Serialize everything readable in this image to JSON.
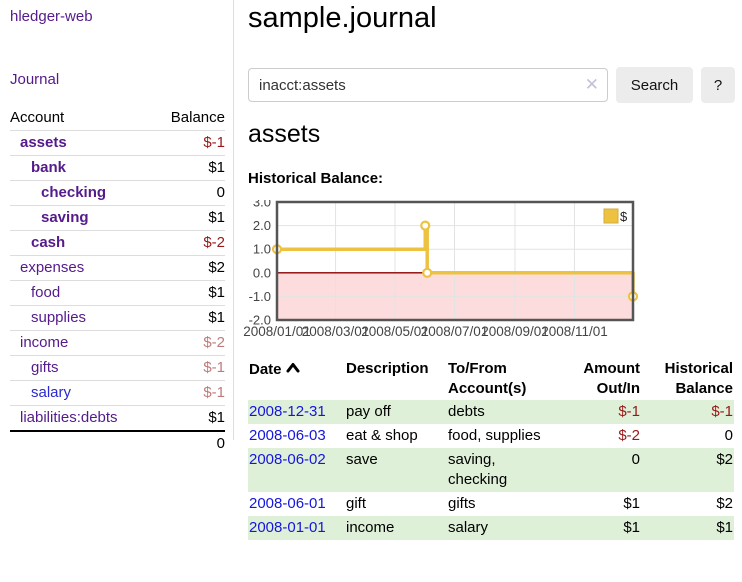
{
  "app": {
    "title": "hledger-web"
  },
  "sidebar": {
    "journal_label": "Journal",
    "accounts": {
      "headers": {
        "account": "Account",
        "balance": "Balance"
      },
      "rows": [
        {
          "name": "assets",
          "indent": 1,
          "bold": true,
          "name_style": "purple",
          "balance": "$-1",
          "balance_style": "neg-strong"
        },
        {
          "name": "bank",
          "indent": 2,
          "bold": true,
          "name_style": "purple",
          "balance": "$1",
          "balance_style": "normal"
        },
        {
          "name": "checking",
          "indent": 3,
          "bold": true,
          "name_style": "purple",
          "balance": "0",
          "balance_style": "normal"
        },
        {
          "name": "saving",
          "indent": 3,
          "bold": true,
          "name_style": "purple",
          "balance": "$1",
          "balance_style": "normal"
        },
        {
          "name": "cash",
          "indent": 2,
          "bold": true,
          "name_style": "purple",
          "balance": "$-2",
          "balance_style": "neg-strong"
        },
        {
          "name": "expenses",
          "indent": 1,
          "bold": false,
          "name_style": "purple",
          "balance": "$2",
          "balance_style": "normal"
        },
        {
          "name": "food",
          "indent": 2,
          "bold": false,
          "name_style": "purple",
          "balance": "$1",
          "balance_style": "normal"
        },
        {
          "name": "supplies",
          "indent": 2,
          "bold": false,
          "name_style": "purple",
          "balance": "$1",
          "balance_style": "normal"
        },
        {
          "name": "income",
          "indent": 1,
          "bold": false,
          "name_style": "purple",
          "balance": "$-2",
          "balance_style": "neg-muted"
        },
        {
          "name": "gifts",
          "indent": 2,
          "bold": false,
          "name_style": "purple",
          "balance": "$-1",
          "balance_style": "neg-muted"
        },
        {
          "name": "salary",
          "indent": 2,
          "bold": false,
          "name_style": "blue",
          "balance": "$-1",
          "balance_style": "neg-muted"
        },
        {
          "name": "liabilities:debts",
          "indent": 1,
          "bold": false,
          "name_style": "purple",
          "balance": "$1",
          "balance_style": "normal"
        }
      ],
      "total": "0"
    }
  },
  "main": {
    "title": "sample.journal",
    "search": {
      "value": "inacct:assets",
      "clear_icon": "✕",
      "button_label": "Search",
      "help_label": "?"
    },
    "account_heading": "assets",
    "chart_label": "Historical Balance:"
  },
  "chart_data": {
    "type": "line",
    "title": "Historical Balance:",
    "step": true,
    "x_range": [
      "2008-01-01",
      "2008-12-31"
    ],
    "ylim": [
      -2.0,
      3.0
    ],
    "y_ticks": [
      "3.0",
      "2.0",
      "1.0",
      "0.0",
      "-1.0",
      "-2.0"
    ],
    "x_ticks": [
      {
        "label": "2008/01/01",
        "date": "2008-01-01"
      },
      {
        "label": "2008/03/01",
        "date": "2008-03-01"
      },
      {
        "label": "2008/05/01",
        "date": "2008-05-01"
      },
      {
        "label": "2008/07/01",
        "date": "2008-07-01"
      },
      {
        "label": "2008/09/01",
        "date": "2008-09-01"
      },
      {
        "label": "2008/11/01",
        "date": "2008-11-01"
      }
    ],
    "series": [
      {
        "name": "$",
        "color": "#edc240",
        "points": [
          {
            "date": "2008-01-01",
            "value": 1
          },
          {
            "date": "2008-06-01",
            "value": 2
          },
          {
            "date": "2008-06-03",
            "value": 0
          },
          {
            "date": "2008-12-31",
            "value": -1
          }
        ]
      }
    ],
    "legend": {
      "label": "$",
      "position": "top-right"
    },
    "grid": true,
    "zero_line_color": "#8b0000",
    "negative_region_color": "#fcdcdc",
    "border_color": "#555555",
    "grid_color": "#e3e3e3",
    "tick_label_color": "#444444"
  },
  "transactions": {
    "headers": {
      "date": "Date",
      "description": "Description",
      "accounts": "To/From Account(s)",
      "amount": "Amount Out/In",
      "balance": "Historical Balance"
    },
    "sort": {
      "column": "date",
      "direction": "ascending"
    },
    "rows": [
      {
        "date": "2008-12-31",
        "description": "pay off",
        "accounts": "debts",
        "amount": "$-1",
        "amount_style": "neg-strong",
        "balance": "$-1",
        "balance_style": "neg-strong"
      },
      {
        "date": "2008-06-03",
        "description": "eat & shop",
        "accounts": "food, supplies",
        "amount": "$-2",
        "amount_style": "neg-strong",
        "balance": "0",
        "balance_style": "normal"
      },
      {
        "date": "2008-06-02",
        "description": "save",
        "accounts": "saving, checking",
        "amount": "0",
        "amount_style": "normal",
        "balance": "$2",
        "balance_style": "normal"
      },
      {
        "date": "2008-06-01",
        "description": "gift",
        "accounts": "gifts",
        "amount": "$1",
        "amount_style": "normal",
        "balance": "$2",
        "balance_style": "normal"
      },
      {
        "date": "2008-01-01",
        "description": "income",
        "accounts": "salary",
        "amount": "$1",
        "amount_style": "normal",
        "balance": "$1",
        "balance_style": "normal"
      }
    ]
  },
  "colors": {
    "link_purple": "#551a8b",
    "link_blue": "#1515dd",
    "negative": "#991818",
    "negative_muted": "#bf7b7b",
    "row_stripe_green": "#dff0d8",
    "chart_line": "#edc240"
  }
}
